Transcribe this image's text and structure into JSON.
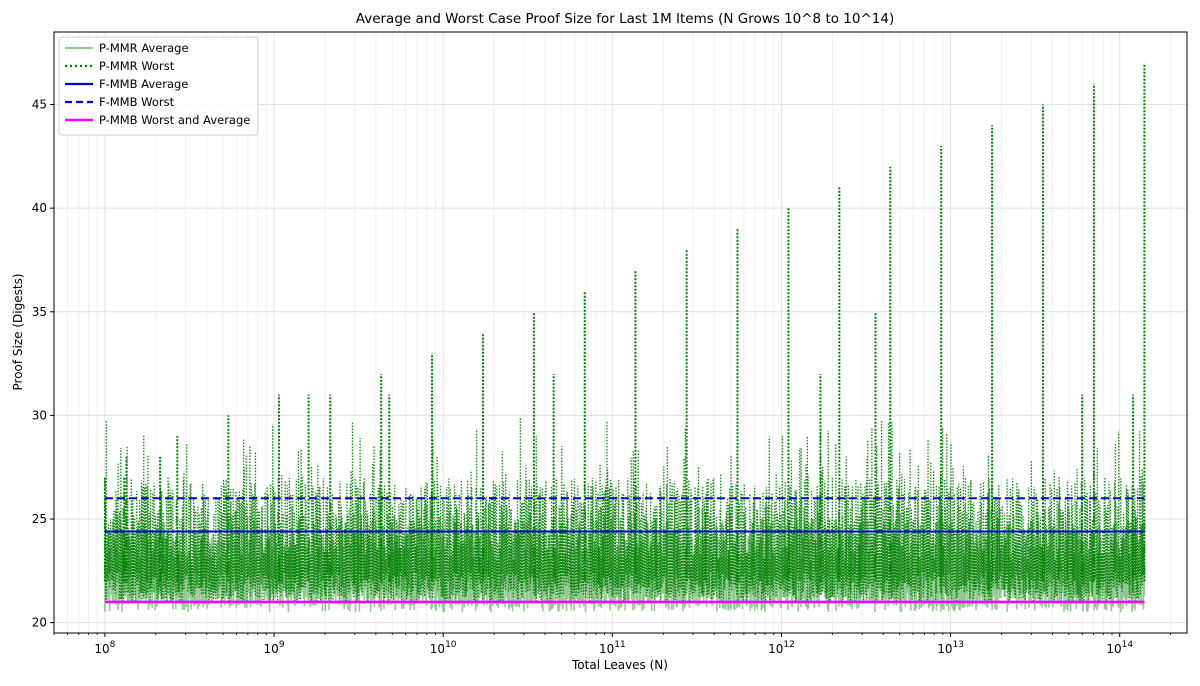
{
  "chart_data": {
    "type": "line",
    "title": "Average and Worst Case Proof Size for Last 1M Items (N Grows 10^8 to 10^14)",
    "xlabel": "Total Leaves (N)",
    "ylabel": "Proof Size (Digests)",
    "x_scale": "log",
    "xlim": [
      50000000,
      250000000000000
    ],
    "ylim": [
      19.5,
      48.5
    ],
    "grid": true,
    "legend_position": "top-left",
    "x_ticks": [
      {
        "value": 100000000,
        "base": "10",
        "exp": "8"
      },
      {
        "value": 1000000000,
        "base": "10",
        "exp": "9"
      },
      {
        "value": 10000000000,
        "base": "10",
        "exp": "10"
      },
      {
        "value": 100000000000,
        "base": "10",
        "exp": "11"
      },
      {
        "value": 1000000000000,
        "base": "10",
        "exp": "12"
      },
      {
        "value": 10000000000000,
        "base": "10",
        "exp": "13"
      },
      {
        "value": 100000000000000,
        "base": "10",
        "exp": "14"
      }
    ],
    "y_ticks": [
      20,
      25,
      30,
      35,
      40,
      45
    ],
    "series": [
      {
        "name": "P-MMR Average",
        "color": "#7fbf7f",
        "style": "solid",
        "x_range": [
          100000000,
          140000000000000
        ],
        "band": [
          20.5,
          25
        ]
      },
      {
        "name": "P-MMR Worst",
        "color": "#008000",
        "style": "dotted",
        "x_range": [
          100000000,
          140000000000000
        ],
        "band": [
          21,
          27
        ],
        "peaks": [
          {
            "x": 100000000,
            "y": 27
          },
          {
            "x": 130000000,
            "y": 27
          },
          {
            "x": 134000000,
            "y": 28
          },
          {
            "x": 212000000,
            "y": 28
          },
          {
            "x": 268000000,
            "y": 29
          },
          {
            "x": 537000000,
            "y": 30
          },
          {
            "x": 1070000000,
            "y": 31
          },
          {
            "x": 1600000000,
            "y": 31
          },
          {
            "x": 2150000000,
            "y": 31
          },
          {
            "x": 4300000000,
            "y": 32
          },
          {
            "x": 4800000000,
            "y": 31
          },
          {
            "x": 8590000000,
            "y": 33
          },
          {
            "x": 17200000000,
            "y": 34
          },
          {
            "x": 34400000000,
            "y": 35
          },
          {
            "x": 45000000000,
            "y": 32
          },
          {
            "x": 68700000000,
            "y": 36
          },
          {
            "x": 137000000000,
            "y": 37
          },
          {
            "x": 275000000000,
            "y": 38
          },
          {
            "x": 550000000000,
            "y": 39
          },
          {
            "x": 1100000000000,
            "y": 40
          },
          {
            "x": 1700000000000,
            "y": 32
          },
          {
            "x": 2200000000000,
            "y": 41
          },
          {
            "x": 3600000000000,
            "y": 35
          },
          {
            "x": 4400000000000,
            "y": 42
          },
          {
            "x": 8800000000000,
            "y": 43
          },
          {
            "x": 17600000000000,
            "y": 44
          },
          {
            "x": 35200000000000,
            "y": 45
          },
          {
            "x": 60000000000000,
            "y": 31
          },
          {
            "x": 70400000000000,
            "y": 46
          },
          {
            "x": 120000000000000,
            "y": 31
          },
          {
            "x": 140000000000000,
            "y": 47
          }
        ]
      },
      {
        "name": "F-MMB Average",
        "color": "#0000cc",
        "style": "solid",
        "x_range": [
          100000000,
          140000000000000
        ],
        "value": 24.4
      },
      {
        "name": "F-MMB Worst",
        "color": "#0000cc",
        "style": "dashed",
        "x_range": [
          100000000,
          140000000000000
        ],
        "value": 26
      },
      {
        "name": "P-MMB Worst and Average",
        "color": "#ff00ff",
        "style": "solid",
        "x_range": [
          100000000,
          140000000000000
        ],
        "value": 21
      }
    ]
  }
}
